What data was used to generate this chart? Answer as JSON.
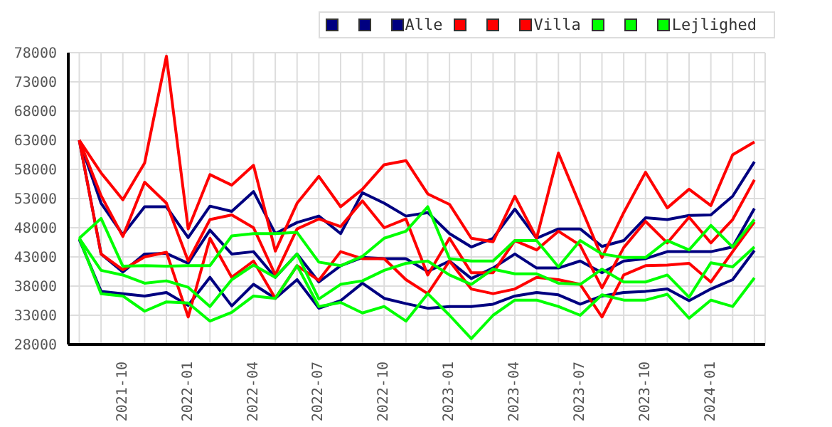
{
  "chart_data": {
    "type": "line",
    "x": [
      "2021-08",
      "2021-09",
      "2021-10",
      "2021-11",
      "2021-12",
      "2022-01",
      "2022-02",
      "2022-03",
      "2022-04",
      "2022-05",
      "2022-06",
      "2022-07",
      "2022-08",
      "2022-09",
      "2022-10",
      "2022-11",
      "2022-12",
      "2023-01",
      "2023-02",
      "2023-03",
      "2023-04",
      "2023-05",
      "2023-06",
      "2023-07",
      "2023-08",
      "2023-09",
      "2023-10",
      "2023-11",
      "2023-12",
      "2024-01",
      "2024-02",
      "2024-03"
    ],
    "series": [
      {
        "color": "#000080",
        "values": [
          63000,
          52200,
          46800,
          51600,
          51600,
          46300,
          51700,
          50800,
          54200,
          47000,
          48900,
          50000,
          47000,
          54000,
          52200,
          50000,
          50600,
          47000,
          44700,
          46200,
          51200,
          46200,
          47800,
          47800,
          44800,
          45800,
          49700,
          49400,
          50100,
          50200,
          53400,
          59300
        ]
      },
      {
        "color": "#000080",
        "values": [
          46000,
          37100,
          36700,
          36300,
          36900,
          34700,
          39500,
          34600,
          38300,
          35900,
          39100,
          34200,
          35500,
          38500,
          35900,
          35000,
          34200,
          34500,
          34500,
          34900,
          36300,
          36900,
          36500,
          34900,
          36300,
          36900,
          37100,
          37500,
          35500,
          37500,
          39100,
          44100
        ]
      },
      {
        "name": "Alle",
        "color": "#000080",
        "values": [
          63000,
          43500,
          40400,
          43500,
          43600,
          41900,
          47600,
          43500,
          43900,
          39500,
          43500,
          38700,
          41500,
          42900,
          42700,
          42700,
          40500,
          42300,
          39300,
          41100,
          43500,
          41100,
          41100,
          42300,
          40300,
          42300,
          42700,
          43900,
          43900,
          43900,
          44700,
          51300
        ]
      },
      {
        "color": "#ff0000",
        "values": [
          63000,
          57400,
          52800,
          59100,
          77400,
          47800,
          57100,
          55300,
          58700,
          44000,
          52200,
          56800,
          51600,
          54600,
          58800,
          59500,
          53800,
          52000,
          46200,
          45600,
          53400,
          46200,
          60800,
          51800,
          42900,
          50600,
          57500,
          51400,
          54600,
          51800,
          60500,
          62700
        ]
      },
      {
        "color": "#ff0000",
        "values": [
          63000,
          43500,
          40800,
          43000,
          43800,
          32700,
          46200,
          39500,
          42300,
          35900,
          41500,
          39000,
          43900,
          42700,
          42700,
          39100,
          36700,
          42300,
          37500,
          36700,
          37500,
          39500,
          39100,
          38300,
          32700,
          39900,
          41500,
          41600,
          41900,
          38700,
          43900,
          49000
        ]
      },
      {
        "name": "Villa",
        "color": "#ff0000",
        "values": [
          63000,
          53500,
          46500,
          55800,
          52200,
          42300,
          49400,
          50200,
          48000,
          39900,
          47800,
          49500,
          48200,
          52600,
          48000,
          49500,
          39900,
          46200,
          40300,
          40300,
          45800,
          44200,
          47400,
          45000,
          37700,
          44600,
          49100,
          45400,
          49800,
          45400,
          49400,
          56200
        ]
      },
      {
        "color": "#00ff00",
        "values": [
          46200,
          49600,
          41400,
          41500,
          41400,
          41500,
          41500,
          46600,
          47000,
          47000,
          47200,
          42100,
          41500,
          43100,
          46200,
          47400,
          51600,
          42700,
          42300,
          42300,
          45800,
          45800,
          41300,
          45800,
          43500,
          42900,
          42900,
          45800,
          44200,
          48400,
          44700,
          49400
        ]
      },
      {
        "color": "#00ff00",
        "values": [
          46200,
          36700,
          36300,
          33700,
          35300,
          35100,
          32000,
          33500,
          36300,
          35900,
          41500,
          34500,
          35200,
          33400,
          34500,
          32000,
          36700,
          33000,
          29000,
          33000,
          35600,
          35600,
          34500,
          33000,
          36500,
          35600,
          35600,
          36600,
          32500,
          35600,
          34500,
          39400
        ]
      },
      {
        "name": "Lejlighed",
        "color": "#00ff00",
        "values": [
          46200,
          40700,
          39900,
          38500,
          38900,
          37800,
          34500,
          39100,
          41600,
          39500,
          43500,
          35800,
          38300,
          38900,
          40700,
          41900,
          42300,
          39900,
          38300,
          40900,
          40100,
          40100,
          38500,
          38300,
          40900,
          38700,
          38700,
          39900,
          36100,
          42000,
          41300,
          44700
        ]
      }
    ],
    "xlim": [
      "2021-07-16",
      "2024-03-16"
    ],
    "xticks": [
      {
        "value": "2021-08",
        "label": null
      },
      {
        "value": "2021-09",
        "label": null
      },
      "2021-10",
      {
        "value": "2021-11",
        "label": null
      },
      {
        "value": "2021-12",
        "label": null
      },
      "2022-01",
      {
        "value": "2022-02",
        "label": null
      },
      {
        "value": "2022-03",
        "label": null
      },
      "2022-04",
      {
        "value": "2022-05",
        "label": null
      },
      {
        "value": "2022-06",
        "label": null
      },
      "2022-07",
      {
        "value": "2022-08",
        "label": null
      },
      {
        "value": "2022-09",
        "label": null
      },
      "2022-10",
      {
        "value": "2022-11",
        "label": null
      },
      {
        "value": "2022-12",
        "label": null
      },
      "2023-01",
      {
        "value": "2023-02",
        "label": null
      },
      {
        "value": "2023-03",
        "label": null
      },
      "2023-04",
      {
        "value": "2023-05",
        "label": null
      },
      {
        "value": "2023-06",
        "label": null
      },
      "2023-07",
      {
        "value": "2023-08",
        "label": null
      },
      {
        "value": "2023-09",
        "label": null
      },
      "2023-10",
      {
        "value": "2023-11",
        "label": null
      },
      {
        "value": "2023-12",
        "label": null
      },
      "2024-01",
      {
        "value": "2024-02",
        "label": null
      },
      {
        "value": "2024-03",
        "label": null
      }
    ],
    "ylim": [
      28000,
      78000
    ],
    "yticks": [
      28000,
      33000,
      38000,
      43000,
      48000,
      53000,
      58000,
      63000,
      68000,
      73000,
      78000
    ],
    "grid": true,
    "legend": "top right"
  }
}
